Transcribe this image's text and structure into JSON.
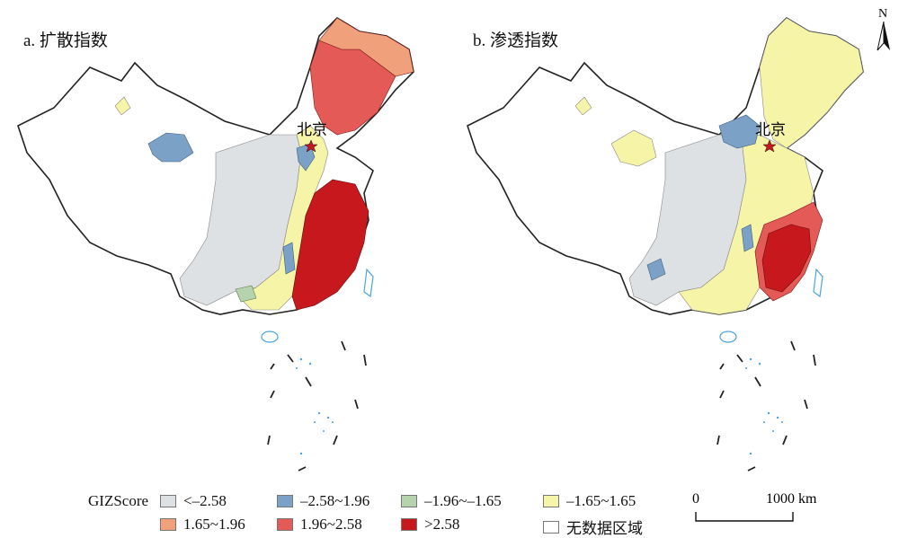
{
  "panels": [
    {
      "label": "a. 扩散指数"
    },
    {
      "label": "b. 渗透指数"
    }
  ],
  "beijing_label": "北京",
  "north_label": "N",
  "legend": {
    "title": "GIZScore",
    "items": [
      {
        "label": "<–2.58",
        "color": "#dde1e3"
      },
      {
        "label": "–2.58~1.96",
        "color": "#7ba2c6"
      },
      {
        "label": "–1.96~–1.65",
        "color": "#b6d3ad"
      },
      {
        "label": "–1.65~1.65",
        "color": "#f6f4a6"
      },
      {
        "label": "1.65~1.96",
        "color": "#f0a07a"
      },
      {
        "label": "1.96~2.58",
        "color": "#e35a57"
      },
      {
        "label": ">2.58",
        "color": "#c7191d"
      },
      {
        "label": "无数据区域",
        "color": "#ffffff"
      }
    ]
  },
  "scale": {
    "zero_label": "0",
    "end_label": "1000 km"
  }
}
